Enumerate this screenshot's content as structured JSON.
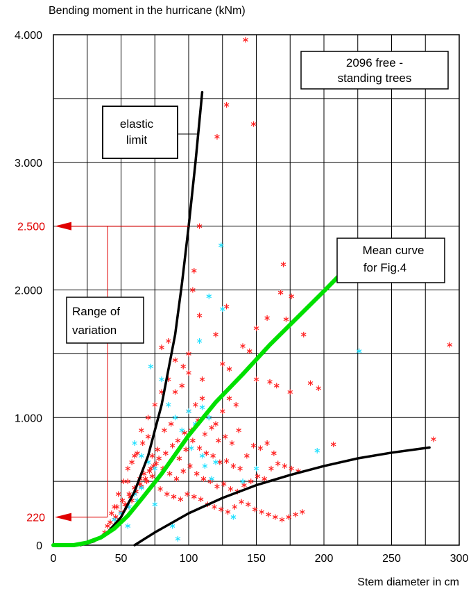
{
  "chart_data": {
    "type": "scatter",
    "ylabel": "Bending moment in the hurricane (kNm)",
    "xlabel": "Stem diameter in cm",
    "xlim": [
      0,
      300
    ],
    "ylim": [
      0,
      4000
    ],
    "grid": true,
    "x_ticks": [
      {
        "value": 0,
        "label": "0"
      },
      {
        "value": 50,
        "label": "50"
      },
      {
        "value": 100,
        "label": "100"
      },
      {
        "value": 150,
        "label": "150"
      },
      {
        "value": 200,
        "label": "200"
      },
      {
        "value": 250,
        "label": "250"
      },
      {
        "value": 300,
        "label": "300"
      }
    ],
    "y_ticks": [
      {
        "value": 0,
        "label": "0"
      },
      {
        "value": 1000,
        "label": "1.000"
      },
      {
        "value": 2000,
        "label": "2.000"
      },
      {
        "value": 3000,
        "label": "3.000"
      },
      {
        "value": 4000,
        "label": "4.000"
      }
    ],
    "highlight_levels": [
      {
        "value": 2500,
        "label": "2.500",
        "x_at": 100,
        "color": "#e00000"
      },
      {
        "value": 220,
        "label": "220",
        "x_at": 40,
        "color": "#e00000"
      }
    ],
    "annotations": {
      "box1": {
        "lines": [
          "2096 free -",
          "standing trees"
        ]
      },
      "box2": {
        "lines": [
          "elastic",
          "limit"
        ]
      },
      "box3": {
        "lines": [
          "Mean curve",
          "for Fig.4"
        ]
      },
      "box4": {
        "lines": [
          "Range of",
          "variation"
        ]
      }
    },
    "series": [
      {
        "style": "line",
        "color": "#000000",
        "x": [
          20,
          30,
          40,
          50,
          60,
          70,
          80,
          90,
          95,
          100,
          105,
          110
        ],
        "y": [
          0,
          30,
          100,
          220,
          420,
          700,
          1100,
          1650,
          2050,
          2500,
          3000,
          3550
        ]
      },
      {
        "style": "line",
        "color": "#00e000",
        "x": [
          0,
          15,
          25,
          35,
          45,
          55,
          65,
          80,
          100,
          120,
          140,
          160,
          180,
          200,
          212
        ],
        "y": [
          0,
          0,
          20,
          60,
          130,
          230,
          360,
          560,
          860,
          1120,
          1340,
          1570,
          1780,
          1990,
          2120
        ]
      },
      {
        "style": "line",
        "color": "#000000",
        "x": [
          60,
          75,
          100,
          125,
          150,
          175,
          200,
          225,
          250,
          278
        ],
        "y": [
          0,
          100,
          250,
          370,
          470,
          550,
          620,
          680,
          725,
          765
        ]
      },
      {
        "style": "marker",
        "color": "#ff2020",
        "x": [
          142,
          128,
          148,
          121,
          108,
          104,
          170,
          168,
          176,
          103,
          108,
          128,
          158,
          172,
          150,
          185,
          120,
          100,
          96,
          85,
          80,
          90,
          100,
          110,
          125,
          130,
          140,
          145,
          150,
          160,
          165,
          175,
          190,
          196,
          207,
          281,
          293,
          55,
          60,
          65,
          70,
          75,
          80,
          85,
          90,
          95,
          100,
          105,
          110,
          115,
          120,
          125,
          130,
          135,
          45,
          48,
          52,
          55,
          58,
          62,
          66,
          70,
          73,
          77,
          82,
          87,
          92,
          97,
          102,
          107,
          112,
          117,
          122,
          127,
          132,
          137,
          50,
          54,
          58,
          61,
          64,
          68,
          71,
          74,
          78,
          83,
          88,
          93,
          98,
          103,
          108,
          113,
          118,
          123,
          128,
          133,
          138,
          143,
          148,
          153,
          158,
          163,
          40,
          43,
          47,
          51,
          56,
          60,
          64,
          67,
          72,
          76,
          81,
          86,
          91,
          96,
          101,
          106,
          111,
          116,
          121,
          126,
          131,
          136,
          141,
          146,
          151,
          156,
          161,
          166,
          171,
          176,
          181,
          38,
          42,
          46,
          50,
          53,
          57,
          61,
          65,
          69,
          73,
          79,
          84,
          89,
          94,
          99,
          104,
          109,
          114,
          119,
          124,
          129,
          134,
          139,
          144,
          149,
          154,
          159,
          164,
          169,
          174,
          179,
          184
        ],
        "y": [
          3960,
          3450,
          3300,
          3200,
          2500,
          2150,
          2200,
          1980,
          1950,
          2000,
          1800,
          1870,
          1780,
          1770,
          1700,
          1650,
          1650,
          1500,
          1400,
          1600,
          1550,
          1450,
          1350,
          1300,
          1420,
          1380,
          1560,
          1520,
          1300,
          1280,
          1250,
          1200,
          1270,
          1230,
          790,
          830,
          1570,
          500,
          700,
          900,
          1000,
          1100,
          1200,
          1300,
          1200,
          1250,
          1050,
          1100,
          1150,
          1000,
          950,
          1050,
          1150,
          1100,
          300,
          400,
          500,
          600,
          650,
          720,
          800,
          850,
          700,
          750,
          900,
          950,
          820,
          880,
          900,
          980,
          870,
          920,
          820,
          850,
          800,
          900,
          200,
          300,
          350,
          420,
          480,
          520,
          580,
          620,
          680,
          720,
          780,
          680,
          750,
          820,
          760,
          720,
          700,
          650,
          660,
          620,
          600,
          700,
          780,
          760,
          800,
          720,
          150,
          250,
          300,
          350,
          400,
          450,
          520,
          560,
          600,
          640,
          600,
          560,
          520,
          580,
          620,
          560,
          520,
          500,
          460,
          480,
          440,
          420,
          470,
          500,
          540,
          520,
          600,
          640,
          620,
          600,
          580,
          100,
          180,
          220,
          260,
          320,
          380,
          420,
          460,
          500,
          540,
          440,
          400,
          380,
          360,
          400,
          380,
          360,
          320,
          300,
          280,
          260,
          300,
          340,
          320,
          280,
          260,
          240,
          220,
          200,
          220,
          240,
          260
        ]
      },
      {
        "style": "marker",
        "color": "#20e0ff",
        "x": [
          124,
          115,
          125,
          108,
          72,
          80,
          85,
          90,
          100,
          110,
          115,
          60,
          65,
          70,
          75,
          95,
          105,
          60,
          62,
          56,
          50,
          45,
          55,
          110,
          120,
          140,
          150,
          226,
          195,
          133,
          92,
          88,
          75,
          65,
          102,
          112,
          117
        ],
        "y": [
          2350,
          1950,
          1850,
          1600,
          1400,
          1300,
          1100,
          1000,
          1050,
          1080,
          1000,
          800,
          700,
          650,
          600,
          900,
          950,
          400,
          350,
          300,
          250,
          200,
          150,
          700,
          650,
          500,
          600,
          1520,
          740,
          220,
          50,
          150,
          320,
          450,
          760,
          620,
          520
        ]
      }
    ]
  }
}
